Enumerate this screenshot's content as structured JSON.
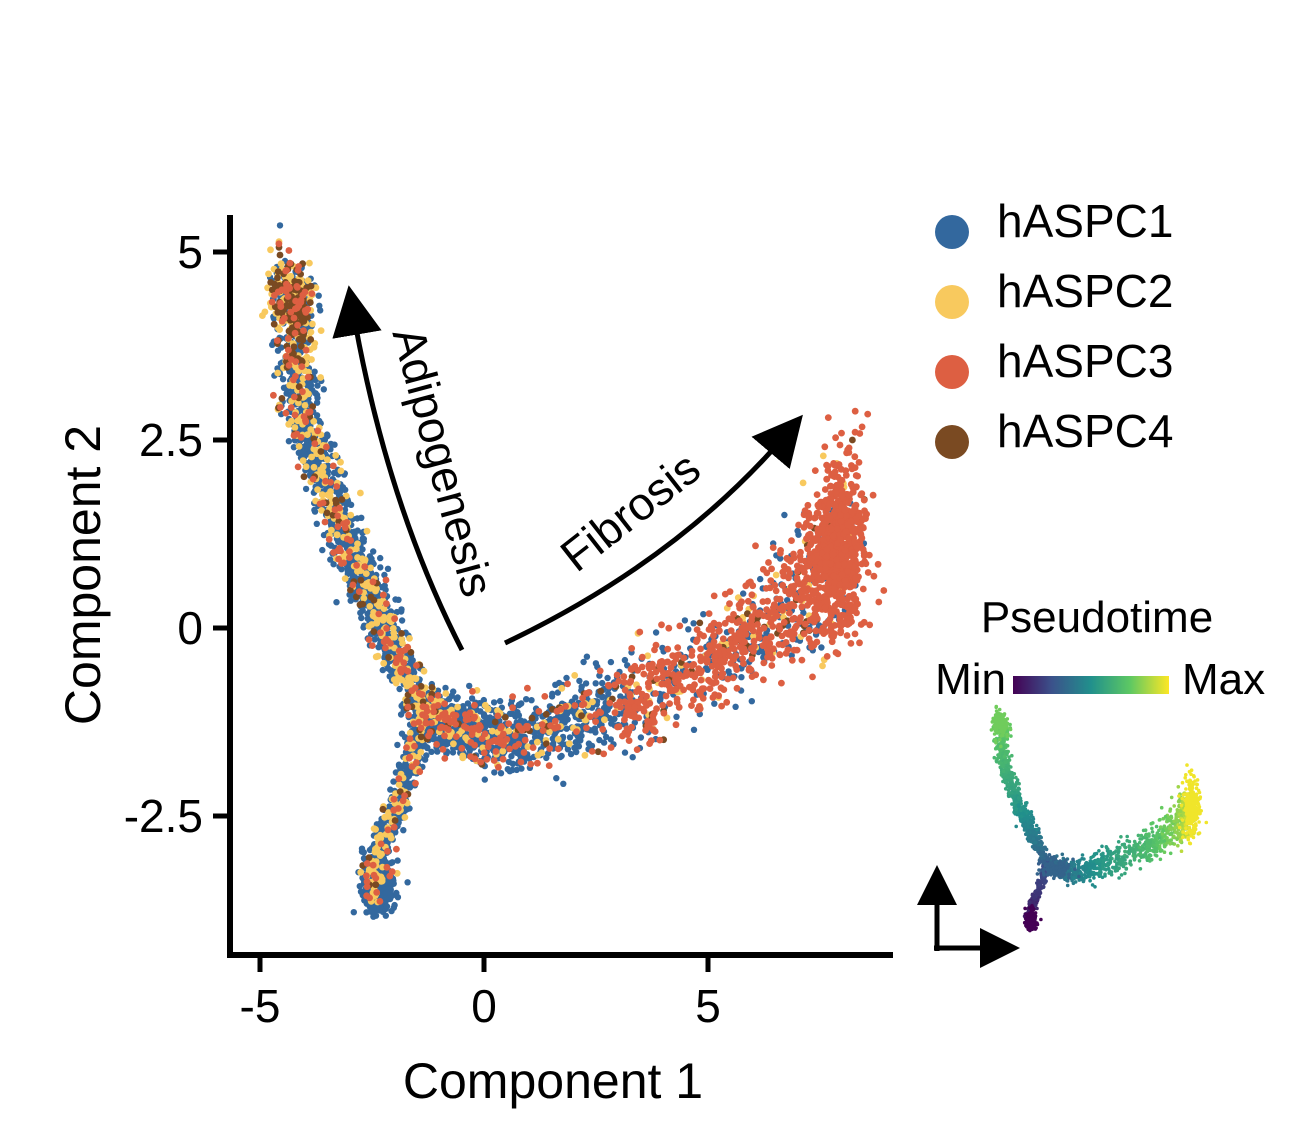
{
  "chart_data": {
    "type": "scatter",
    "xlabel": "Component 1",
    "ylabel": "Component 2",
    "xlim": [
      -5.5,
      9.2
    ],
    "ylim": [
      -4.2,
      5.5
    ],
    "x_ticks": [
      {
        "value": -5,
        "label": "-5"
      },
      {
        "value": 0,
        "label": "0"
      },
      {
        "value": 5,
        "label": "5"
      }
    ],
    "y_ticks": [
      {
        "value": 5,
        "label": "5"
      },
      {
        "value": 2.5,
        "label": "2.5"
      },
      {
        "value": 0,
        "label": "0"
      },
      {
        "value": -2.5,
        "label": "-2.5"
      }
    ],
    "legend_position": "top-right",
    "series": [
      {
        "name": "hASPC1",
        "color": "#33689E"
      },
      {
        "name": "hASPC2",
        "color": "#F8C95E"
      },
      {
        "name": "hASPC3",
        "color": "#DD5F42"
      },
      {
        "name": "hASPC4",
        "color": "#7A4A22"
      }
    ],
    "trajectory": {
      "branch_point": [
        -1.3,
        -1.2
      ],
      "adipogenesis_branch": [
        [
          -1.3,
          -1.2
        ],
        [
          -2.2,
          0.0
        ],
        [
          -3.2,
          1.3
        ],
        [
          -4.1,
          2.9
        ],
        [
          -4.3,
          4.6
        ]
      ],
      "fibrosis_branch": [
        [
          -1.3,
          -1.2
        ],
        [
          0.5,
          -1.5
        ],
        [
          3.0,
          -1.0
        ],
        [
          5.5,
          -0.3
        ],
        [
          7.3,
          0.6
        ],
        [
          8.0,
          1.1
        ]
      ],
      "root_branch": [
        [
          -1.3,
          -1.2
        ],
        [
          -1.9,
          -2.3
        ],
        [
          -2.5,
          -3.2
        ],
        [
          -2.4,
          -3.6
        ]
      ]
    },
    "annotations": [
      {
        "text": "Adipogenesis"
      },
      {
        "text": "Fibrosis"
      }
    ],
    "pseudotime_legend": {
      "title": "Pseudotime",
      "min_label": "Min",
      "max_label": "Max",
      "colors": [
        "#440154",
        "#3B528B",
        "#21908C",
        "#5DC863",
        "#FDE725"
      ]
    }
  }
}
